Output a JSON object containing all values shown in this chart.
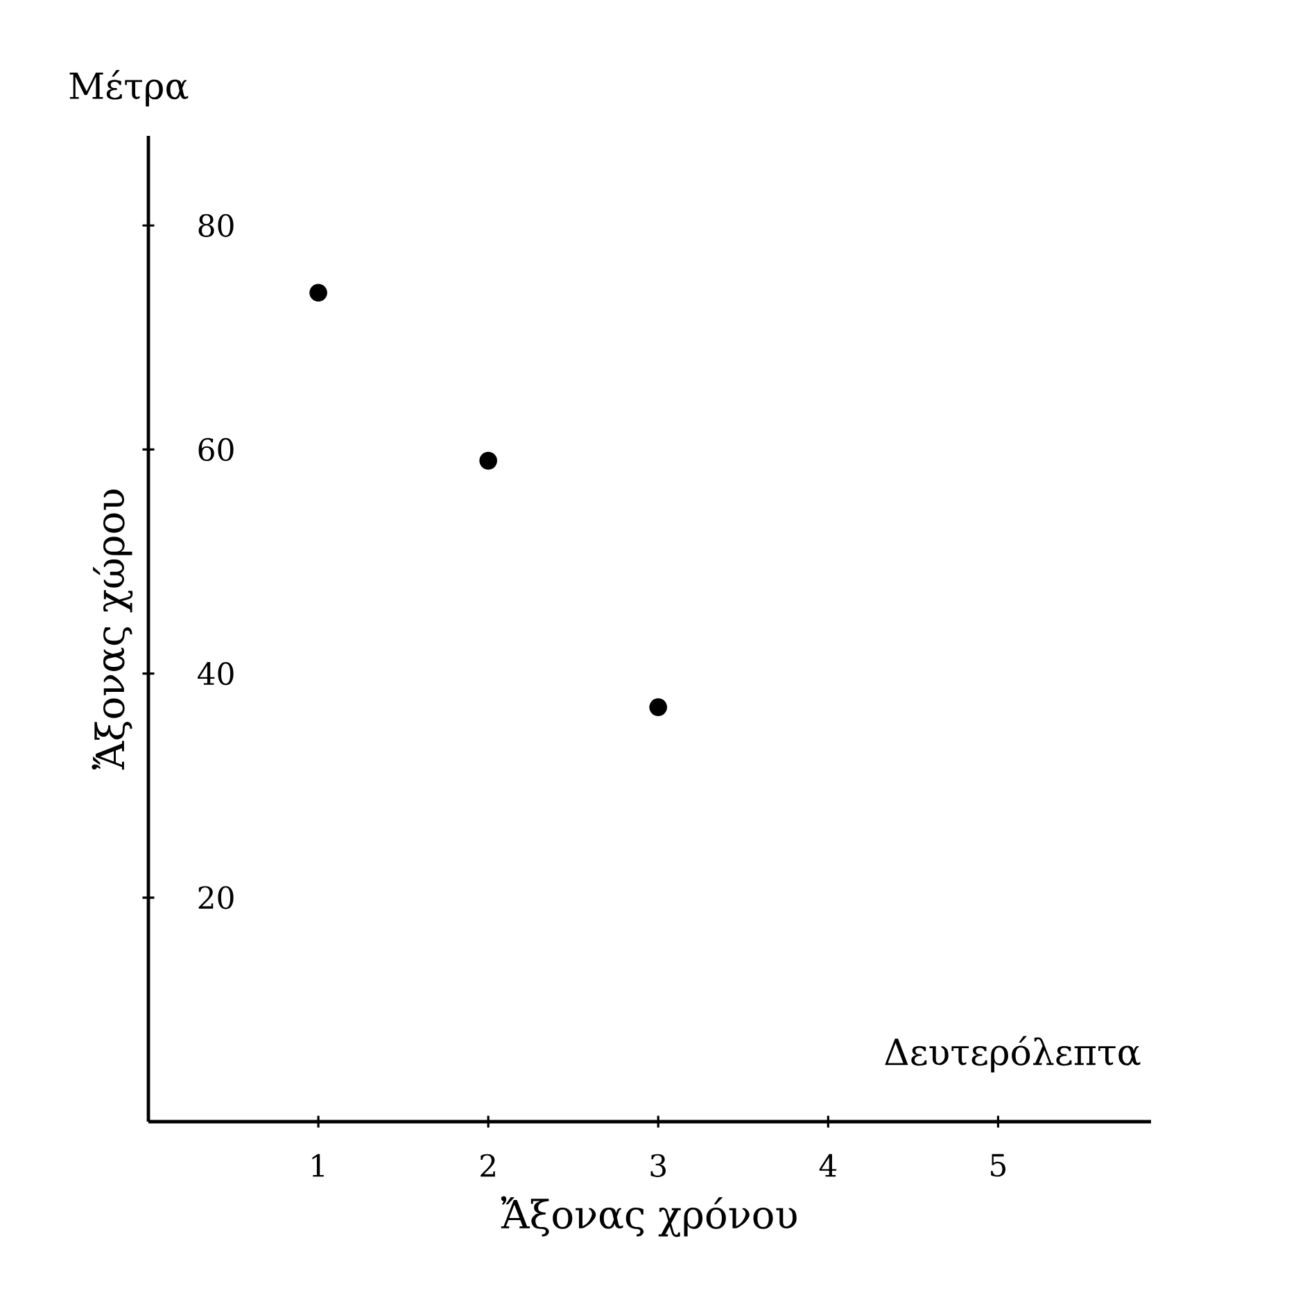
{
  "chart_data": {
    "type": "scatter",
    "xlabel": "Ἄξονας χρόνου",
    "ylabel": "Ἄξονας χώρου",
    "annotations": [
      "Μέτρα",
      "Δευτερόλεπτα"
    ],
    "x": [
      1,
      2,
      3
    ],
    "values": [
      74,
      59,
      37
    ],
    "color": "#000000",
    "marker": "circle",
    "xlim": [
      0,
      5.9
    ],
    "ylim": [
      0,
      88
    ],
    "xticks": [
      1,
      2,
      3,
      4,
      5
    ],
    "yticks": [
      20,
      40,
      60,
      80
    ],
    "grid": false
  }
}
